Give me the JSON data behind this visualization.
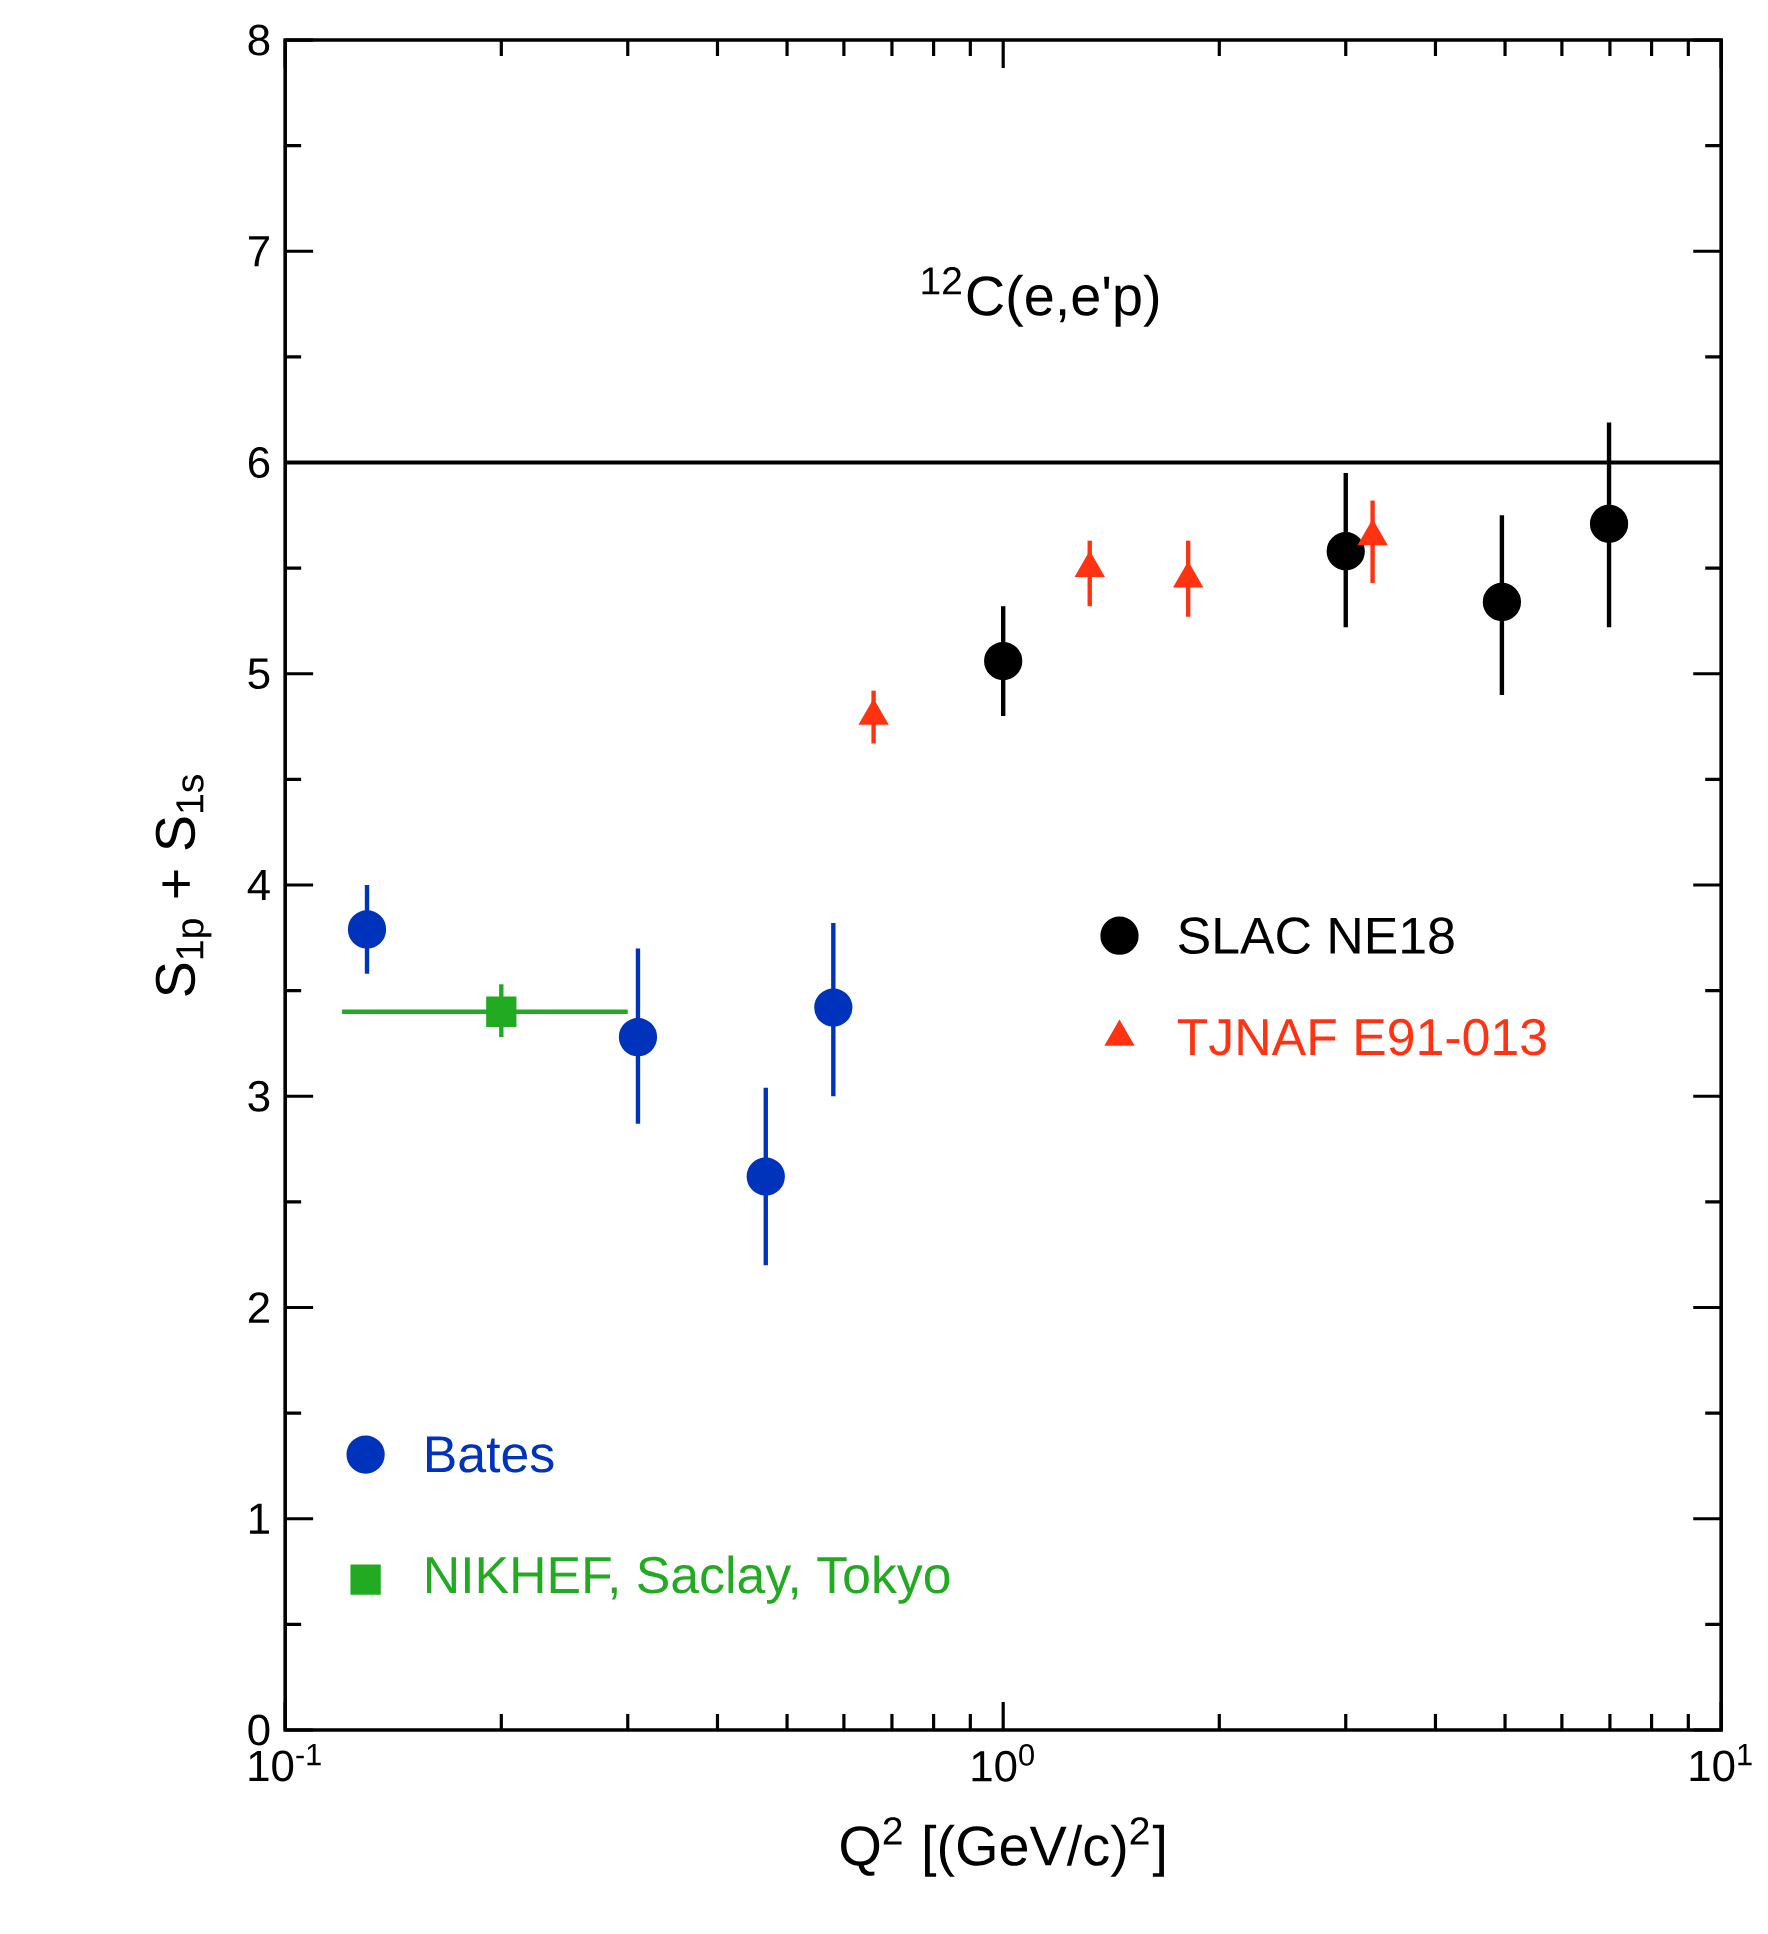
{
  "chart_data": {
    "type": "scatter",
    "annotations": [
      "$^{12}$C(e,e'p)"
    ],
    "xlabel": "Q$^{2}$ [(GeV/c)$^{2}$]",
    "ylabel": "S$_{1p}$ + S$_{1s}$",
    "log": "x",
    "xlim": [
      0.1,
      10
    ],
    "xticks": [
      {
        "value": 0.1,
        "label": "10$^{-1}$"
      },
      {
        "value": 1,
        "label": "10$^{0}$"
      },
      {
        "value": 10,
        "label": "10$^{1}$"
      }
    ],
    "ylim": [
      0,
      8
    ],
    "yticks": [
      0,
      1,
      2,
      3,
      4,
      5,
      6,
      7,
      8
    ],
    "grid": false,
    "legend": "right",
    "ref_lines": [
      {
        "axis": "y",
        "value": 6,
        "color": "#000000"
      }
    ],
    "series": [
      {
        "name": "SLAC NE18",
        "color": "#000000",
        "marker": "circle",
        "x": [
          1.0,
          3.0,
          4.95,
          6.98
        ],
        "values": [
          5.06,
          5.58,
          5.34,
          5.71
        ],
        "errors": [
          [
            4.8,
            5.32
          ],
          [
            5.22,
            5.95
          ],
          [
            4.9,
            5.75
          ],
          [
            5.22,
            6.19
          ]
        ]
      },
      {
        "name": "TJNAF E91-013",
        "color": "#ff3311",
        "marker": "triangle",
        "x": [
          0.66,
          1.32,
          1.81,
          3.27
        ],
        "values": [
          4.8,
          5.5,
          5.45,
          5.65
        ],
        "errors": [
          [
            4.67,
            4.92
          ],
          [
            5.32,
            5.63
          ],
          [
            5.27,
            5.63
          ],
          [
            5.43,
            5.82
          ]
        ]
      },
      {
        "name": "Bates",
        "color": "#0033bb",
        "marker": "circle",
        "x": [
          0.13,
          0.31,
          0.467,
          0.58
        ],
        "values": [
          3.79,
          3.28,
          2.62,
          3.42
        ],
        "errors": [
          [
            3.58,
            4.0
          ],
          [
            2.87,
            3.7
          ],
          [
            2.2,
            3.04
          ],
          [
            3.0,
            3.82
          ]
        ]
      },
      {
        "name": "NIKHEF, Saclay, Tokyo",
        "color": "#22aa22",
        "marker": "square",
        "x": [
          0.2
        ],
        "values": [
          3.4
        ],
        "errors": [
          [
            3.28,
            3.53
          ]
        ],
        "xerrors": [
          [
            0.12,
            0.3
          ]
        ]
      }
    ]
  }
}
